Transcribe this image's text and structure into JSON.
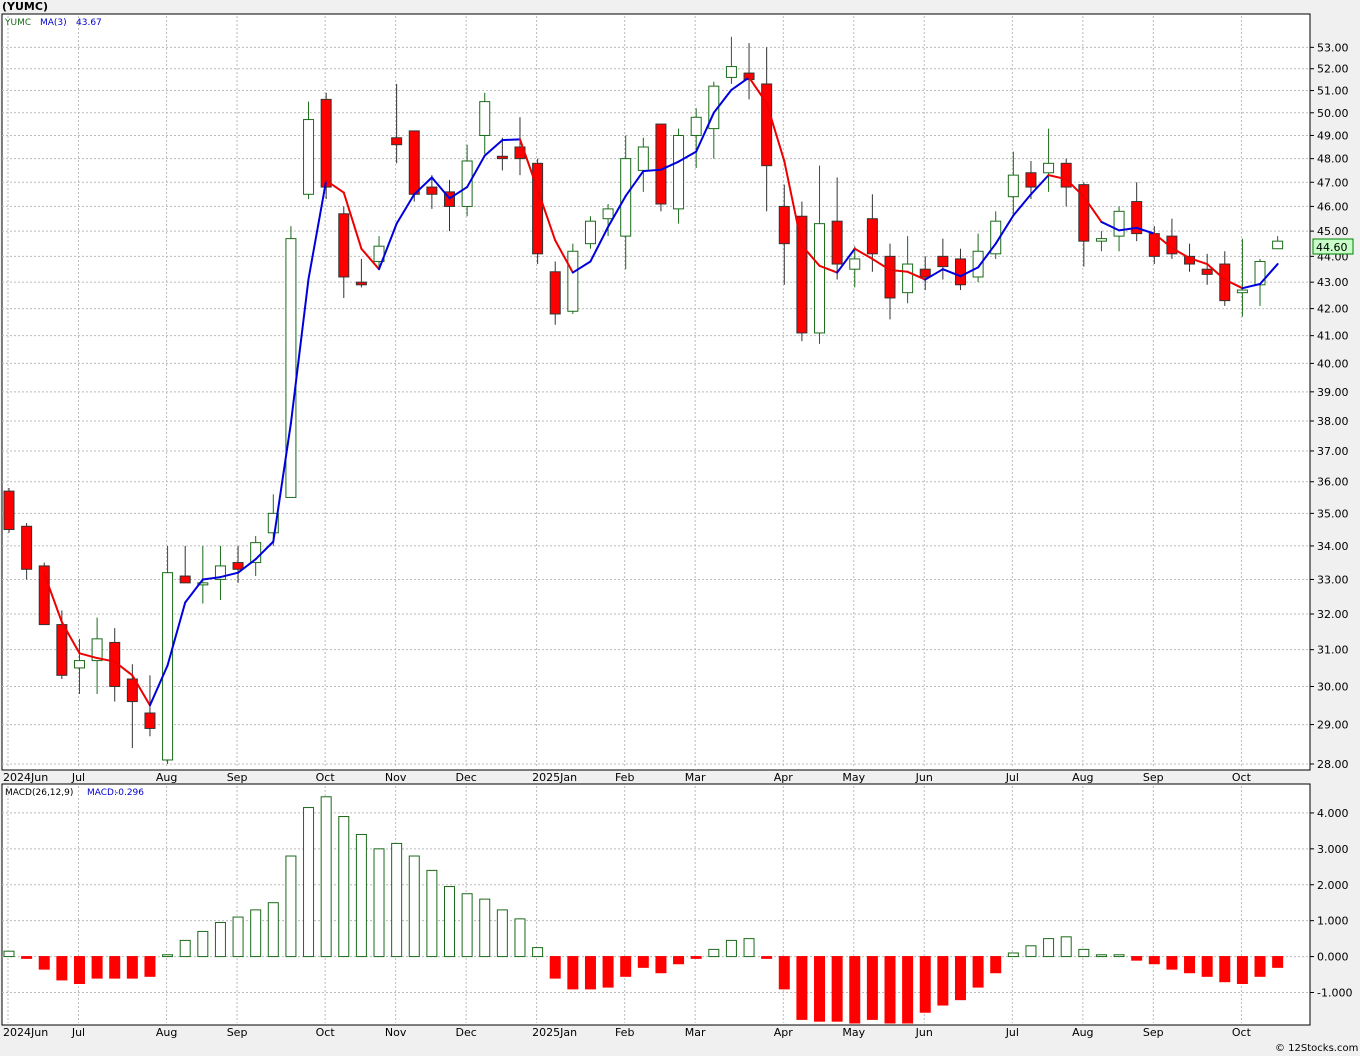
{
  "title": "(YUMC)",
  "footer": "© 12Stocks.com",
  "colors": {
    "up": "#1a6b1a",
    "down": "#ff0000",
    "ma_up": "#0000dd",
    "ma_down": "#ee0000",
    "grid": "#bbbbbb",
    "current_box": "#c8ffc8"
  },
  "chart_data": [
    {
      "type": "candlestick",
      "legend": {
        "symbol": "YUMC",
        "indicator": "MA(3)",
        "value": "43.67"
      },
      "y_ticks": [
        "53.00",
        "52.00",
        "51.00",
        "50.00",
        "49.00",
        "48.00",
        "47.00",
        "46.00",
        "45.00",
        "44.00",
        "43.00",
        "42.00",
        "41.00",
        "40.00",
        "39.00",
        "38.00",
        "37.00",
        "36.00",
        "35.00",
        "34.00",
        "33.00",
        "32.00",
        "31.00",
        "30.00",
        "29.00",
        "28.00"
      ],
      "ylim": [
        27.9,
        54.5
      ],
      "log_scale": true,
      "grid": true,
      "current_price": "44.60",
      "x_labels": [
        {
          "week": 0,
          "text": "2024Jun"
        },
        {
          "week": 4,
          "text": "Jul"
        },
        {
          "week": 9,
          "text": "Aug"
        },
        {
          "week": 13,
          "text": "Sep"
        },
        {
          "week": 18,
          "text": "Oct"
        },
        {
          "week": 22,
          "text": "Nov"
        },
        {
          "week": 26,
          "text": "Dec"
        },
        {
          "week": 30,
          "text": "2025Jan"
        },
        {
          "week": 35,
          "text": "Feb"
        },
        {
          "week": 39,
          "text": "Mar"
        },
        {
          "week": 44,
          "text": "Apr"
        },
        {
          "week": 48,
          "text": "May"
        },
        {
          "week": 52,
          "text": "Jun"
        },
        {
          "week": 57,
          "text": "Jul"
        },
        {
          "week": 61,
          "text": "Aug"
        },
        {
          "week": 65,
          "text": "Sep"
        },
        {
          "week": 70,
          "text": "Oct"
        }
      ],
      "ohlc": [
        [
          35.7,
          35.8,
          34.4,
          34.5
        ],
        [
          34.6,
          34.7,
          33.0,
          33.3
        ],
        [
          33.4,
          33.5,
          31.7,
          31.7
        ],
        [
          31.7,
          32.1,
          30.2,
          30.3
        ],
        [
          30.5,
          31.3,
          29.8,
          30.7
        ],
        [
          30.7,
          31.9,
          29.8,
          31.3
        ],
        [
          31.2,
          31.6,
          29.6,
          30.0
        ],
        [
          30.2,
          30.6,
          28.4,
          29.6
        ],
        [
          29.3,
          30.3,
          28.7,
          28.9
        ],
        [
          28.1,
          34.0,
          28.0,
          33.2
        ],
        [
          33.1,
          34.0,
          32.9,
          32.9
        ],
        [
          32.9,
          34.0,
          32.3,
          32.9
        ],
        [
          33.0,
          34.0,
          32.4,
          33.4
        ],
        [
          33.5,
          34.0,
          32.9,
          33.3
        ],
        [
          33.5,
          34.3,
          33.1,
          34.1
        ],
        [
          34.4,
          35.6,
          34.0,
          35.0
        ],
        [
          35.5,
          45.2,
          35.5,
          44.7
        ],
        [
          46.5,
          50.5,
          46.3,
          49.7
        ],
        [
          50.6,
          50.9,
          46.3,
          46.8
        ],
        [
          45.7,
          46.0,
          42.4,
          43.2
        ],
        [
          43.0,
          43.9,
          42.8,
          42.9
        ],
        [
          43.8,
          44.8,
          43.5,
          44.4
        ],
        [
          48.9,
          51.3,
          47.8,
          48.6
        ],
        [
          49.2,
          49.2,
          46.2,
          46.5
        ],
        [
          46.8,
          47.3,
          45.9,
          46.5
        ],
        [
          46.6,
          47.1,
          45.0,
          46.0
        ],
        [
          46.0,
          48.6,
          45.6,
          47.9
        ],
        [
          49.0,
          50.9,
          48.2,
          50.5
        ],
        [
          48.1,
          48.9,
          47.5,
          48.0
        ],
        [
          48.5,
          49.8,
          47.3,
          48.0
        ],
        [
          47.8,
          48.0,
          43.7,
          44.1
        ],
        [
          43.4,
          43.8,
          41.4,
          41.8
        ],
        [
          41.9,
          44.5,
          41.8,
          44.2
        ],
        [
          44.5,
          45.6,
          44.3,
          45.4
        ],
        [
          45.5,
          46.1,
          44.8,
          45.9
        ],
        [
          44.8,
          49.0,
          43.5,
          48.0
        ],
        [
          47.5,
          48.9,
          46.6,
          48.5
        ],
        [
          49.5,
          49.5,
          45.8,
          46.1
        ],
        [
          45.9,
          49.3,
          45.3,
          49.0
        ],
        [
          49.0,
          50.2,
          47.6,
          49.8
        ],
        [
          49.3,
          51.4,
          48.0,
          51.2
        ],
        [
          51.6,
          53.5,
          51.3,
          52.1
        ],
        [
          51.8,
          53.2,
          50.6,
          51.5
        ],
        [
          51.3,
          53.0,
          45.8,
          47.7
        ],
        [
          46.0,
          46.9,
          42.9,
          44.5
        ],
        [
          45.6,
          46.2,
          40.8,
          41.1
        ],
        [
          41.1,
          47.7,
          40.7,
          45.3
        ],
        [
          45.4,
          47.2,
          43.1,
          43.7
        ],
        [
          43.5,
          44.4,
          42.8,
          43.9
        ],
        [
          45.5,
          46.5,
          43.4,
          44.1
        ],
        [
          44.0,
          44.5,
          41.6,
          42.4
        ],
        [
          42.6,
          44.8,
          42.2,
          43.7
        ],
        [
          43.5,
          44.0,
          42.7,
          43.2
        ],
        [
          44.0,
          44.7,
          43.1,
          43.6
        ],
        [
          43.9,
          44.3,
          42.7,
          42.9
        ],
        [
          43.2,
          44.9,
          43.0,
          44.2
        ],
        [
          44.1,
          45.8,
          43.9,
          45.4
        ],
        [
          46.4,
          48.3,
          45.7,
          47.3
        ],
        [
          47.4,
          47.9,
          46.3,
          46.8
        ],
        [
          47.4,
          49.3,
          46.6,
          47.8
        ],
        [
          47.8,
          48.0,
          46.0,
          46.8
        ],
        [
          46.9,
          47.0,
          43.6,
          44.6
        ],
        [
          44.6,
          45.0,
          44.2,
          44.7
        ],
        [
          44.8,
          46.0,
          44.2,
          45.8
        ],
        [
          46.2,
          47.0,
          44.6,
          44.9
        ],
        [
          44.9,
          45.2,
          43.7,
          44.0
        ],
        [
          44.8,
          45.5,
          43.9,
          44.1
        ],
        [
          44.0,
          44.5,
          43.4,
          43.7
        ],
        [
          43.5,
          44.1,
          42.9,
          43.3
        ],
        [
          43.7,
          44.2,
          42.1,
          42.3
        ],
        [
          42.6,
          44.7,
          41.7,
          42.7
        ],
        [
          42.9,
          43.9,
          42.1,
          43.8
        ],
        [
          44.3,
          44.8,
          44.3,
          44.6
        ]
      ],
      "ma3": [
        null,
        null,
        33.17,
        31.77,
        30.9,
        30.77,
        30.67,
        30.3,
        29.5,
        30.57,
        32.33,
        33.0,
        33.07,
        33.2,
        33.6,
        34.13,
        37.93,
        43.13,
        47.07,
        46.57,
        44.3,
        43.5,
        45.3,
        46.5,
        47.2,
        46.33,
        46.8,
        48.13,
        48.8,
        48.83,
        46.7,
        44.63,
        43.37,
        43.8,
        45.17,
        46.43,
        47.47,
        47.53,
        47.87,
        48.3,
        50.0,
        51.03,
        51.6,
        50.43,
        47.9,
        44.43,
        43.63,
        43.37,
        44.3,
        43.9,
        43.47,
        43.4,
        43.1,
        43.5,
        43.23,
        43.57,
        44.5,
        45.63,
        46.5,
        47.3,
        47.13,
        46.4,
        45.37,
        45.03,
        45.13,
        44.9,
        44.33,
        43.93,
        43.7,
        43.1,
        42.77,
        42.93,
        43.7
      ],
      "ma_dir": [
        "d",
        "d",
        "d",
        "d",
        "d",
        "d",
        "d",
        "d",
        "d",
        "u",
        "u",
        "u",
        "u",
        "u",
        "u",
        "u",
        "u",
        "u",
        "u",
        "d",
        "d",
        "d",
        "u",
        "u",
        "u",
        "u",
        "u",
        "u",
        "u",
        "u",
        "d",
        "d",
        "d",
        "u",
        "u",
        "u",
        "u",
        "u",
        "u",
        "u",
        "u",
        "u",
        "u",
        "d",
        "d",
        "d",
        "d",
        "d",
        "u",
        "d",
        "d",
        "d",
        "d",
        "u",
        "u",
        "u",
        "u",
        "u",
        "u",
        "u",
        "d",
        "d",
        "d",
        "u",
        "u",
        "u",
        "d",
        "d",
        "d",
        "d",
        "d",
        "u",
        "u"
      ]
    },
    {
      "type": "bar",
      "legend": {
        "indicator": "MACD(26,12,9)",
        "label": "MACD:",
        "value": "-0.296"
      },
      "y_ticks": [
        "4.000",
        "3.000",
        "2.000",
        "1.000",
        "0.000",
        "-1.000"
      ],
      "ylim": [
        -1.85,
        4.75
      ],
      "grid": true,
      "values": [
        0.15,
        -0.05,
        -0.35,
        -0.65,
        -0.75,
        -0.6,
        -0.6,
        -0.6,
        -0.55,
        0.05,
        0.45,
        0.7,
        0.95,
        1.1,
        1.3,
        1.5,
        2.8,
        4.15,
        4.45,
        3.9,
        3.4,
        3.0,
        3.15,
        2.8,
        2.4,
        1.95,
        1.75,
        1.6,
        1.3,
        1.05,
        0.25,
        -0.6,
        -0.9,
        -0.9,
        -0.85,
        -0.55,
        -0.3,
        -0.45,
        -0.2,
        -0.05,
        0.2,
        0.45,
        0.5,
        -0.05,
        -0.9,
        -1.75,
        -1.8,
        -1.8,
        -1.85,
        -1.75,
        -1.85,
        -1.85,
        -1.55,
        -1.35,
        -1.2,
        -0.85,
        -0.45,
        0.1,
        0.3,
        0.5,
        0.55,
        0.2,
        0.05,
        0.05,
        -0.1,
        -0.2,
        -0.35,
        -0.45,
        -0.55,
        -0.7,
        -0.75,
        -0.55,
        -0.3
      ]
    }
  ]
}
